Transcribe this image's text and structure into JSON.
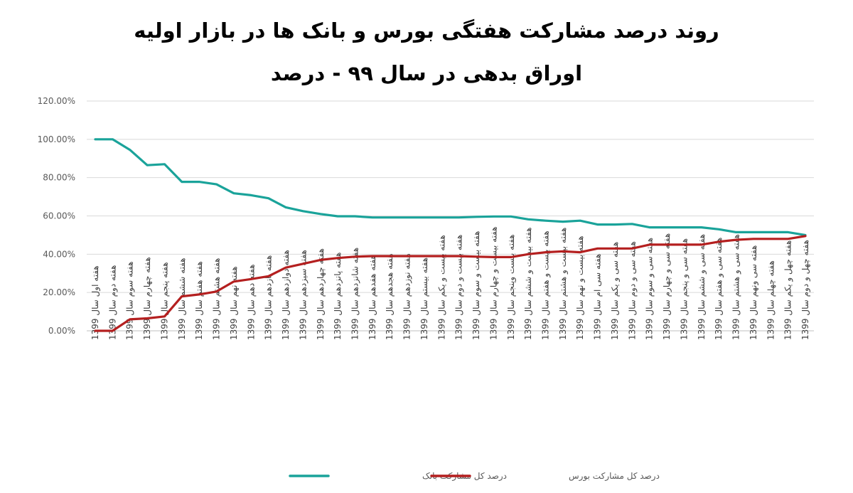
{
  "chart_data": {
    "type": "line",
    "title_line1": "روند درصد مشارکت هفتگی بورس و بانک ها در بازار اولیه",
    "title_line2": "اوراق بدهی در سال ۹۹ - درصد",
    "y_ticks": [
      "0.00%",
      "20.00%",
      "40.00%",
      "60.00%",
      "80.00%",
      "100.00%",
      "120.00%"
    ],
    "ylim": [
      0,
      120
    ],
    "grid": true,
    "legend_position": "bottom-center",
    "categories": [
      "هفته اول سال 1399",
      "هفته دوم سال 1399",
      "هفته سوم سال 1399",
      "هفته چهارم سال 1399",
      "هفته پنجم سال 1399",
      "هفته ششم سال 1399",
      "هفته هفتم سال 1399",
      "هفته هشتم سال 1399",
      "هفته نهم سال 1399",
      "هفته دهم سال 1399",
      "هفته یازدهم سال 1399",
      "هفته دوازدهم سال 1399",
      "هفته سیزدهم سال 1399",
      "هفته چهاردهم سال 1399",
      "هفته پانزدهم سال 1399",
      "هفته شانزدهم سال 1399",
      "هفته هفدهم سال 1399",
      "هفته هجدهم سال 1399",
      "هفته نوزدهم سال 1399",
      "هفته بیستم سال 1399",
      "هفته بیست و یکم سال 1399",
      "هفته بیست و دوم سال 1399",
      "هفته بیست و سوم سال 1399",
      "هفته بیست و چهارم سال 1399",
      "هفته بیست وپنجم سال 1399",
      "هفته بیست و ششم سال 1399",
      "هفته بیست و هفتم سال 1399",
      "هفته بیست و هشتم سال 1399",
      "هفته بیست و نهم سال 1399",
      "هفته سی ام سال 1399",
      "هفته سی و یکم سال 1399",
      "هفته سی و دوم سال 1399",
      "هفته سی و سوم سال 1399",
      "هفته سی و چهارم سال 1399",
      "هفته سی و پنجم سال 1399",
      "هفته سی و ششم سال 1399",
      "هفته سی و هفتم سال 1399",
      "هفته سی و هشتم سال 1399",
      "هفته سی ونهم سال 1399",
      "هفته چهلم سال 1399",
      "هفته چهل و یکم سال 1399",
      "هفته چهل و دوم سال 1399"
    ],
    "series": [
      {
        "name": "درصد کل مشارکت بانک",
        "color": "#1aa39a",
        "values": [
          100,
          100,
          94.5,
          86.5,
          87,
          77.8,
          77.8,
          76.5,
          71.8,
          70.8,
          69.2,
          64.5,
          62.5,
          61,
          59.8,
          59.8,
          59.2,
          59.2,
          59.2,
          59.2,
          59.2,
          59.2,
          59.5,
          59.7,
          59.7,
          58.2,
          57.5,
          57,
          57.5,
          55.5,
          55.5,
          55.8,
          54,
          54,
          54,
          54,
          53,
          51.5,
          51.5,
          51.5,
          51.5,
          50
        ]
      },
      {
        "name": "درصد کل مشارکت بورس",
        "color": "#b41f1f",
        "values": [
          0,
          0,
          6,
          6.5,
          7.5,
          18,
          19,
          20.5,
          25.7,
          27,
          28.5,
          33,
          35,
          37,
          38,
          38.7,
          39,
          39,
          39,
          39,
          39,
          39,
          38.7,
          38.5,
          38.5,
          40,
          41,
          41.5,
          41,
          43,
          43,
          43,
          45,
          45,
          45,
          45,
          46.5,
          47.5,
          48,
          48,
          48,
          49.5
        ]
      }
    ]
  }
}
